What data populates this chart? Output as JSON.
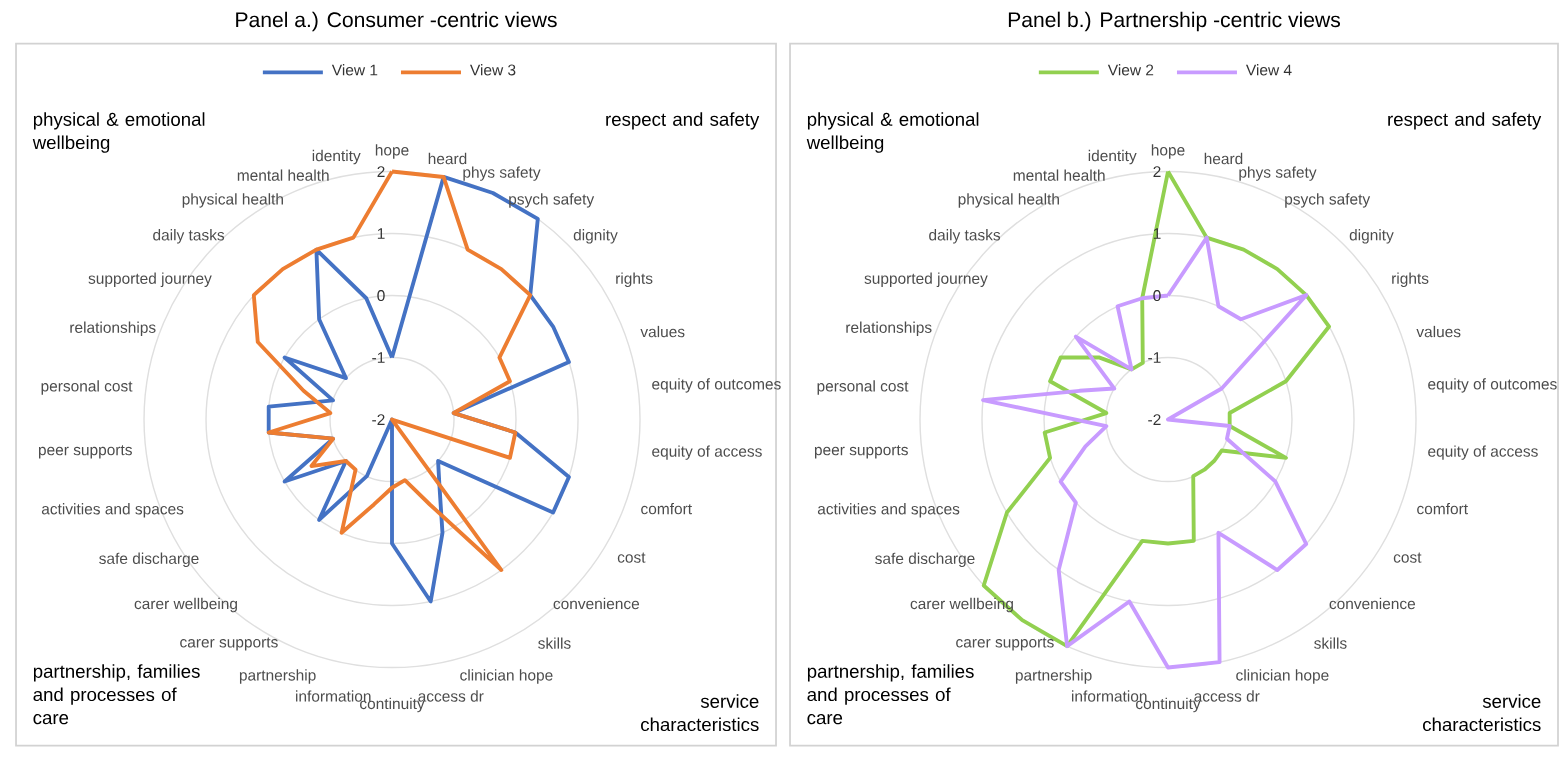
{
  "chart_data": [
    {
      "type": "radar",
      "title": "Panel a.) Consumer -centric views",
      "categories": [
        "hope",
        "heard",
        "phys safety",
        "psych safety",
        "dignity",
        "rights",
        "values",
        "equity of outcomes",
        "equity of access",
        "comfort",
        "cost",
        "convenience",
        "skills",
        "clinician hope",
        "access dr",
        "continuity",
        "information",
        "partnership",
        "carer supports",
        "carer wellbeing",
        "safe discharge",
        "activities and spaces",
        "peer supports",
        "personal cost",
        "relationships",
        "supported journey",
        "daily tasks",
        "physical health",
        "mental health",
        "identity"
      ],
      "series": [
        {
          "name": "View 1",
          "color": "#4472c4",
          "values": [
            -1,
            2,
            2,
            2,
            1,
            1,
            1,
            -1,
            0,
            1,
            1,
            -1,
            -0.7,
            0,
            1,
            0,
            -2,
            -1,
            0,
            -1,
            0,
            -1,
            0,
            0,
            -1,
            0,
            -1,
            0,
            1,
            0
          ]
        },
        {
          "name": "View 3",
          "color": "#ed7d31",
          "values": [
            2,
            2,
            1,
            1,
            1,
            0,
            0,
            -1,
            0,
            0,
            -2,
            -2,
            1,
            -0.5,
            -1,
            -0.9,
            -0.6,
            0,
            -1,
            -1,
            -0.5,
            -1,
            0,
            -1,
            -0.5,
            0.5,
            1,
            1,
            1,
            1
          ]
        }
      ],
      "ylim": [
        -2,
        2
      ],
      "yticks": [
        -2,
        -1,
        0,
        1,
        2
      ],
      "grid": "y",
      "legend": "top",
      "annotations": [
        "physical & emotional wellbeing",
        "respect and safety",
        "partnership,  families and processes of care",
        "service characteristics"
      ]
    },
    {
      "type": "radar",
      "title": "Panel b.) Partnership -centric views",
      "categories": [
        "hope",
        "heard",
        "phys safety",
        "psych safety",
        "dignity",
        "rights",
        "values",
        "equity of outcomes",
        "equity of access",
        "comfort",
        "cost",
        "convenience",
        "skills",
        "clinician hope",
        "access dr",
        "continuity",
        "information",
        "partnership",
        "carer supports",
        "carer wellbeing",
        "safe discharge",
        "activities and spaces",
        "peer supports",
        "personal cost",
        "relationships",
        "supported journey",
        "daily tasks",
        "physical health",
        "mental health",
        "identity"
      ],
      "series": [
        {
          "name": "View 2",
          "color": "#92d050",
          "values": [
            2,
            1,
            1,
            1,
            1,
            1,
            0,
            -1,
            -1,
            0,
            -1,
            -1,
            -1,
            -1,
            0,
            0,
            0,
            2,
            2,
            2,
            1,
            0,
            0,
            -1,
            0,
            0,
            -0.5,
            -1,
            -1,
            0
          ]
        },
        {
          "name": "View 4",
          "color": "#c89bff",
          "values": [
            0,
            1,
            0,
            0,
            1,
            -1,
            -2,
            -2,
            -1,
            -1,
            0,
            1,
            1,
            0,
            2,
            2,
            1,
            2,
            1,
            0,
            0,
            -0.6,
            -1,
            1,
            -0.5,
            -1,
            0,
            -1,
            0,
            0
          ]
        }
      ],
      "ylim": [
        -2,
        2
      ],
      "yticks": [
        -2,
        -1,
        0,
        1,
        2
      ],
      "grid": "y",
      "legend": "top",
      "annotations": [
        "physical & emotional wellbeing",
        "respect and safety",
        "partnership,  families and processes of care",
        "service characteristics"
      ]
    }
  ]
}
